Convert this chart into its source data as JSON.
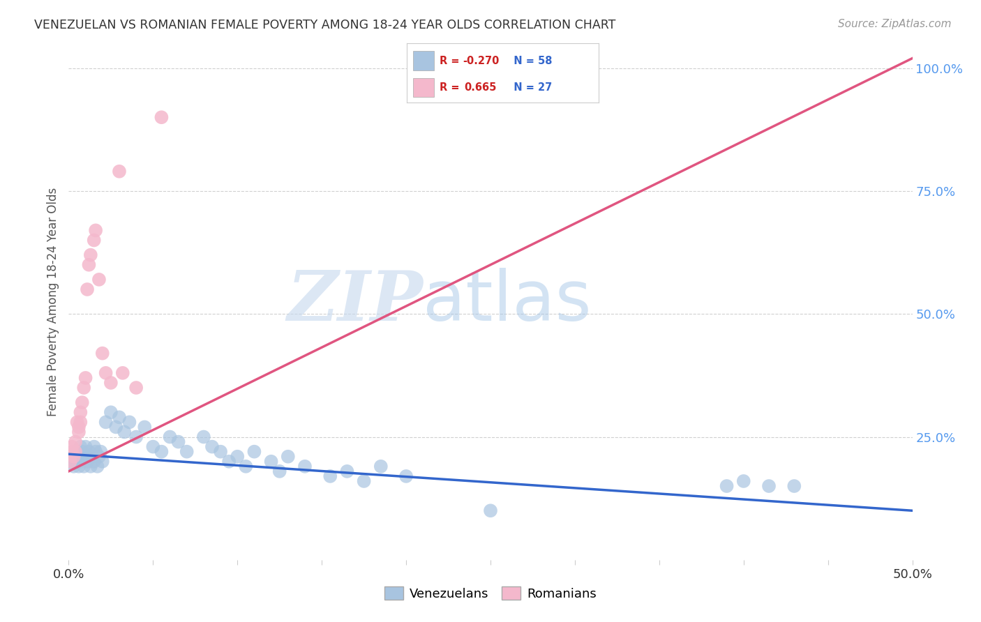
{
  "title": "VENEZUELAN VS ROMANIAN FEMALE POVERTY AMONG 18-24 YEAR OLDS CORRELATION CHART",
  "source": "Source: ZipAtlas.com",
  "ylabel": "Female Poverty Among 18-24 Year Olds",
  "xlim": [
    0.0,
    0.5
  ],
  "ylim": [
    0.0,
    1.05
  ],
  "xticks": [
    0.0,
    0.05,
    0.1,
    0.15,
    0.2,
    0.25,
    0.3,
    0.35,
    0.4,
    0.45,
    0.5
  ],
  "xtick_labels": [
    "0.0%",
    "",
    "",
    "",
    "",
    "",
    "",
    "",
    "",
    "",
    "50.0%"
  ],
  "yticks_right": [
    0.0,
    0.25,
    0.5,
    0.75,
    1.0
  ],
  "ytick_right_labels": [
    "",
    "25.0%",
    "50.0%",
    "75.0%",
    "100.0%"
  ],
  "blue_color": "#a8c4e0",
  "pink_color": "#f4b8cc",
  "blue_line_color": "#3366cc",
  "pink_line_color": "#e05580",
  "R_blue": -0.27,
  "N_blue": 58,
  "R_pink": 0.665,
  "N_pink": 27,
  "venezuelan_x": [
    0.001,
    0.002,
    0.003,
    0.004,
    0.005,
    0.005,
    0.006,
    0.007,
    0.007,
    0.008,
    0.009,
    0.01,
    0.01,
    0.011,
    0.012,
    0.013,
    0.014,
    0.015,
    0.015,
    0.016,
    0.017,
    0.018,
    0.019,
    0.02,
    0.022,
    0.025,
    0.028,
    0.03,
    0.033,
    0.036,
    0.04,
    0.045,
    0.05,
    0.055,
    0.06,
    0.065,
    0.07,
    0.08,
    0.085,
    0.09,
    0.095,
    0.1,
    0.105,
    0.11,
    0.12,
    0.125,
    0.13,
    0.14,
    0.155,
    0.165,
    0.175,
    0.185,
    0.2,
    0.25,
    0.39,
    0.4,
    0.415,
    0.43
  ],
  "venezuelan_y": [
    0.2,
    0.21,
    0.19,
    0.2,
    0.22,
    0.21,
    0.19,
    0.23,
    0.2,
    0.22,
    0.19,
    0.21,
    0.23,
    0.2,
    0.22,
    0.19,
    0.21,
    0.2,
    0.23,
    0.22,
    0.19,
    0.21,
    0.22,
    0.2,
    0.28,
    0.3,
    0.27,
    0.29,
    0.26,
    0.28,
    0.25,
    0.27,
    0.23,
    0.22,
    0.25,
    0.24,
    0.22,
    0.25,
    0.23,
    0.22,
    0.2,
    0.21,
    0.19,
    0.22,
    0.2,
    0.18,
    0.21,
    0.19,
    0.17,
    0.18,
    0.16,
    0.19,
    0.17,
    0.1,
    0.15,
    0.16,
    0.15,
    0.15
  ],
  "romanian_x": [
    0.001,
    0.002,
    0.002,
    0.003,
    0.004,
    0.004,
    0.005,
    0.006,
    0.006,
    0.007,
    0.007,
    0.008,
    0.009,
    0.01,
    0.011,
    0.012,
    0.013,
    0.015,
    0.016,
    0.018,
    0.02,
    0.022,
    0.025,
    0.03,
    0.032,
    0.04,
    0.055
  ],
  "romanian_y": [
    0.2,
    0.22,
    0.23,
    0.21,
    0.22,
    0.24,
    0.28,
    0.27,
    0.26,
    0.28,
    0.3,
    0.32,
    0.35,
    0.37,
    0.55,
    0.6,
    0.62,
    0.65,
    0.67,
    0.57,
    0.42,
    0.38,
    0.36,
    0.79,
    0.38,
    0.35,
    0.9
  ],
  "pink_line_x0": 0.0,
  "pink_line_y0": 0.18,
  "pink_line_x1": 0.5,
  "pink_line_y1": 1.02,
  "blue_line_x0": 0.0,
  "blue_line_y0": 0.215,
  "blue_line_x1": 0.5,
  "blue_line_y1": 0.1,
  "watermark_zip": "ZIP",
  "watermark_atlas": "atlas",
  "background_color": "#ffffff",
  "grid_color": "#d0d0d0"
}
